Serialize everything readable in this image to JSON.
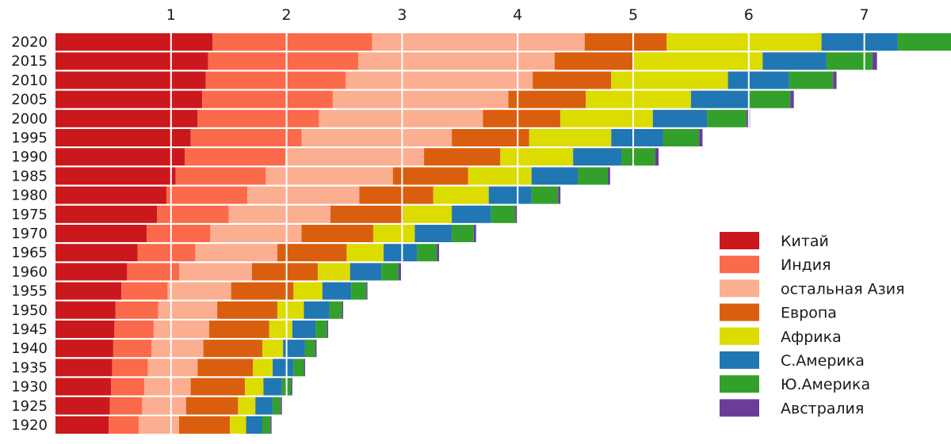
{
  "chart_data": {
    "type": "bar",
    "orientation": "horizontal",
    "stacked": true,
    "title": "",
    "xlabel": "",
    "ylabel": "",
    "x_tick_position": "top",
    "xlim": [
      0,
      7.75
    ],
    "x_ticks": [
      "1",
      "2",
      "3",
      "4",
      "5",
      "6",
      "7"
    ],
    "grid": true,
    "legend_position": "right",
    "categories": [
      "2020",
      "2015",
      "2010",
      "2005",
      "2000",
      "1995",
      "1990",
      "1985",
      "1980",
      "1975",
      "1970",
      "1965",
      "1960",
      "1955",
      "1950",
      "1945",
      "1940",
      "1935",
      "1930",
      "1925",
      "1920"
    ],
    "series": [
      {
        "name": "Китай",
        "color": "#cb181d",
        "values": [
          1.36,
          1.32,
          1.3,
          1.27,
          1.23,
          1.17,
          1.12,
          1.04,
          0.96,
          0.88,
          0.79,
          0.71,
          0.62,
          0.57,
          0.52,
          0.51,
          0.5,
          0.49,
          0.48,
          0.47,
          0.46
        ]
      },
      {
        "name": "Индия",
        "color": "#fb6a4a",
        "values": [
          1.38,
          1.3,
          1.21,
          1.13,
          1.05,
          0.96,
          0.87,
          0.78,
          0.7,
          0.62,
          0.55,
          0.5,
          0.45,
          0.4,
          0.37,
          0.34,
          0.33,
          0.31,
          0.29,
          0.28,
          0.26
        ]
      },
      {
        "name": "остальная Азия",
        "color": "#fcae91",
        "values": [
          1.84,
          1.7,
          1.62,
          1.52,
          1.42,
          1.3,
          1.2,
          1.1,
          0.97,
          0.88,
          0.79,
          0.71,
          0.63,
          0.55,
          0.51,
          0.48,
          0.45,
          0.43,
          0.4,
          0.38,
          0.35
        ]
      },
      {
        "name": "Европа",
        "color": "#d95f0e",
        "values": [
          0.71,
          0.68,
          0.68,
          0.67,
          0.67,
          0.67,
          0.66,
          0.65,
          0.64,
          0.63,
          0.62,
          0.6,
          0.57,
          0.54,
          0.52,
          0.52,
          0.51,
          0.48,
          0.47,
          0.45,
          0.44
        ]
      },
      {
        "name": "Африка",
        "color": "#dcdc00",
        "values": [
          1.34,
          1.12,
          1.01,
          0.91,
          0.8,
          0.71,
          0.63,
          0.55,
          0.48,
          0.42,
          0.36,
          0.32,
          0.28,
          0.25,
          0.23,
          0.2,
          0.18,
          0.17,
          0.16,
          0.15,
          0.14
        ]
      },
      {
        "name": "С.Америка",
        "color": "#2077b4",
        "values": [
          0.66,
          0.55,
          0.53,
          0.5,
          0.47,
          0.45,
          0.42,
          0.4,
          0.37,
          0.34,
          0.32,
          0.29,
          0.27,
          0.25,
          0.22,
          0.2,
          0.19,
          0.18,
          0.16,
          0.15,
          0.14
        ]
      },
      {
        "name": "Ю.Америка",
        "color": "#33a02c",
        "values": [
          0.47,
          0.4,
          0.38,
          0.36,
          0.34,
          0.31,
          0.29,
          0.26,
          0.23,
          0.21,
          0.19,
          0.17,
          0.15,
          0.13,
          0.11,
          0.1,
          0.09,
          0.09,
          0.08,
          0.07,
          0.07
        ]
      },
      {
        "name": "Австралия",
        "color": "#6a3d9a",
        "values": [
          0.04,
          0.04,
          0.03,
          0.03,
          0.03,
          0.03,
          0.03,
          0.02,
          0.02,
          0.02,
          0.02,
          0.02,
          0.02,
          0.01,
          0.01,
          0.01,
          0.01,
          0.01,
          0.01,
          0.01,
          0.01
        ]
      }
    ]
  }
}
